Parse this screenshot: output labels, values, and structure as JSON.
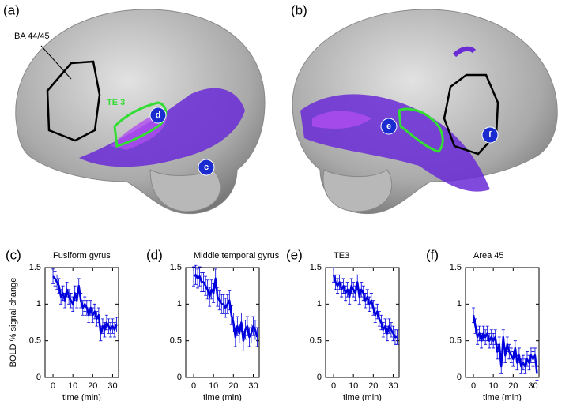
{
  "brain_panels": [
    {
      "label": "(a)",
      "annotations": [
        "BA 44/45",
        "TE 3"
      ],
      "markers": [
        "d",
        "c"
      ]
    },
    {
      "label": "(b)",
      "annotations": [],
      "markers": [
        "e",
        "f"
      ]
    }
  ],
  "chart_data": [
    {
      "type": "line",
      "panel_label": "(c)",
      "title": "Fusiform gyrus",
      "xlabel": "time (min)",
      "ylabel": "BOLD % signal change",
      "xlim": [
        -4,
        33
      ],
      "ylim": [
        0,
        1.5
      ],
      "xticks": [
        0,
        10,
        20,
        30
      ],
      "yticks": [
        0,
        0.5,
        1,
        1.5
      ],
      "x": [
        0,
        1,
        2,
        3,
        4,
        5,
        6,
        7,
        8,
        9,
        10,
        11,
        12,
        13,
        14,
        15,
        16,
        17,
        18,
        19,
        20,
        21,
        22,
        23,
        24,
        25,
        26,
        27,
        28,
        29,
        30,
        31,
        32
      ],
      "series": [
        {
          "color": "#0000dd",
          "values": [
            1.38,
            1.35,
            1.3,
            1.25,
            1.1,
            1.15,
            1.05,
            1.2,
            1.1,
            1.05,
            1.0,
            1.15,
            1.05,
            1.25,
            1.05,
            0.95,
            1.0,
            0.95,
            0.85,
            0.95,
            0.85,
            0.9,
            0.8,
            0.85,
            0.6,
            0.7,
            0.65,
            0.75,
            0.7,
            0.65,
            0.7,
            0.65,
            0.72
          ],
          "errors": [
            0.1,
            0.1,
            0.1,
            0.1,
            0.1,
            0.1,
            0.1,
            0.1,
            0.1,
            0.1,
            0.1,
            0.1,
            0.1,
            0.1,
            0.1,
            0.1,
            0.1,
            0.1,
            0.1,
            0.1,
            0.1,
            0.1,
            0.1,
            0.1,
            0.1,
            0.1,
            0.1,
            0.1,
            0.1,
            0.1,
            0.1,
            0.1,
            0.1
          ]
        }
      ]
    },
    {
      "type": "line",
      "panel_label": "(d)",
      "title": "Middle temporal gyrus",
      "xlabel": "time (min)",
      "xlim": [
        -4,
        33
      ],
      "ylim": [
        0,
        1.5
      ],
      "xticks": [
        0,
        10,
        20,
        30
      ],
      "yticks": [
        0,
        0.5,
        1,
        1.5
      ],
      "x": [
        0,
        1,
        2,
        3,
        4,
        5,
        6,
        7,
        8,
        9,
        10,
        11,
        12,
        13,
        14,
        15,
        16,
        17,
        18,
        19,
        20,
        21,
        22,
        23,
        24,
        25,
        26,
        27,
        28,
        29,
        30,
        31,
        32
      ],
      "series": [
        {
          "color": "#0000dd",
          "values": [
            1.38,
            1.4,
            1.35,
            1.38,
            1.3,
            1.3,
            1.25,
            1.2,
            1.1,
            1.2,
            1.15,
            1.35,
            1.1,
            1.05,
            1.0,
            1.0,
            0.95,
            1.0,
            1.05,
            0.85,
            0.75,
            0.55,
            0.7,
            0.6,
            0.75,
            0.5,
            0.65,
            0.7,
            0.55,
            0.6,
            0.7,
            0.65,
            0.55
          ],
          "errors": [
            0.13,
            0.13,
            0.13,
            0.13,
            0.13,
            0.13,
            0.13,
            0.13,
            0.13,
            0.13,
            0.13,
            0.13,
            0.13,
            0.13,
            0.13,
            0.13,
            0.13,
            0.13,
            0.13,
            0.13,
            0.13,
            0.13,
            0.13,
            0.13,
            0.13,
            0.13,
            0.13,
            0.13,
            0.13,
            0.13,
            0.13,
            0.13,
            0.13
          ]
        }
      ]
    },
    {
      "type": "line",
      "panel_label": "(e)",
      "title": "TE3",
      "xlabel": "time (min)",
      "xlim": [
        -4,
        33
      ],
      "ylim": [
        0,
        1.5
      ],
      "xticks": [
        0,
        10,
        20,
        30
      ],
      "yticks": [
        0,
        0.5,
        1,
        1.5
      ],
      "x": [
        0,
        1,
        2,
        3,
        4,
        5,
        6,
        7,
        8,
        9,
        10,
        11,
        12,
        13,
        14,
        15,
        16,
        17,
        18,
        19,
        20,
        21,
        22,
        23,
        24,
        25,
        26,
        27,
        28,
        29,
        30,
        31,
        32
      ],
      "series": [
        {
          "color": "#0000dd",
          "values": [
            1.4,
            1.3,
            1.25,
            1.3,
            1.2,
            1.25,
            1.15,
            1.2,
            1.1,
            1.25,
            1.2,
            1.15,
            1.3,
            1.1,
            1.2,
            1.15,
            1.05,
            1.1,
            1.0,
            1.05,
            0.95,
            0.85,
            0.9,
            0.8,
            0.75,
            0.65,
            0.7,
            0.6,
            0.7,
            0.65,
            0.6,
            0.55,
            0.55
          ],
          "errors": [
            0.1,
            0.1,
            0.1,
            0.1,
            0.1,
            0.1,
            0.1,
            0.1,
            0.1,
            0.1,
            0.1,
            0.1,
            0.1,
            0.1,
            0.1,
            0.1,
            0.1,
            0.1,
            0.1,
            0.1,
            0.1,
            0.1,
            0.1,
            0.1,
            0.1,
            0.1,
            0.1,
            0.1,
            0.1,
            0.1,
            0.1,
            0.1,
            0.1
          ]
        }
      ]
    },
    {
      "type": "line",
      "panel_label": "(f)",
      "title": "Area 45",
      "xlabel": "time (min)",
      "xlim": [
        -4,
        33
      ],
      "ylim": [
        0,
        1.5
      ],
      "xticks": [
        0,
        10,
        20,
        30
      ],
      "yticks": [
        0,
        0.5,
        1,
        1.5
      ],
      "x": [
        0,
        1,
        2,
        3,
        4,
        5,
        6,
        7,
        8,
        9,
        10,
        11,
        12,
        13,
        14,
        15,
        16,
        17,
        18,
        19,
        20,
        21,
        22,
        23,
        24,
        25,
        26,
        27,
        28,
        29,
        30,
        31,
        32
      ],
      "series": [
        {
          "color": "#0000dd",
          "values": [
            0.85,
            0.7,
            0.55,
            0.6,
            0.5,
            0.6,
            0.55,
            0.6,
            0.5,
            0.55,
            0.5,
            0.55,
            0.35,
            0.45,
            0.15,
            0.55,
            0.3,
            0.45,
            0.35,
            0.3,
            0.25,
            0.4,
            0.2,
            0.3,
            0.15,
            0.2,
            0.15,
            0.25,
            0.2,
            0.3,
            0.25,
            0.3,
            0.05
          ],
          "errors": [
            0.1,
            0.1,
            0.1,
            0.1,
            0.1,
            0.1,
            0.1,
            0.1,
            0.1,
            0.1,
            0.1,
            0.1,
            0.1,
            0.1,
            0.1,
            0.1,
            0.1,
            0.1,
            0.1,
            0.1,
            0.1,
            0.1,
            0.1,
            0.1,
            0.1,
            0.1,
            0.1,
            0.1,
            0.1,
            0.1,
            0.1,
            0.1,
            0.1
          ]
        }
      ]
    }
  ]
}
